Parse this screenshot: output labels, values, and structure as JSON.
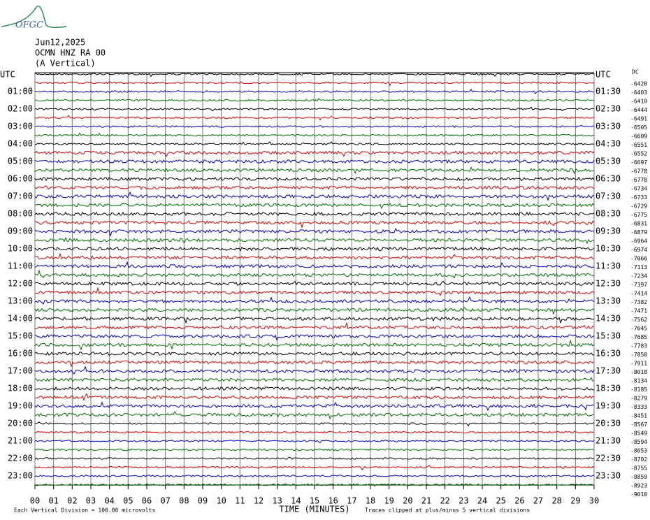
{
  "logo": "OFGC",
  "chart_data": {
    "type": "helicorder",
    "title_lines": [
      "Jun12,2025",
      "OCMN HNZ RA 00",
      "(A Vertical)"
    ],
    "left_labels": [
      "UTC",
      "01:00",
      "02:00",
      "03:00",
      "04:00",
      "05:00",
      "06:00",
      "07:00",
      "08:00",
      "09:00",
      "10:00",
      "11:00",
      "12:00",
      "13:00",
      "14:00",
      "15:00",
      "16:00",
      "17:00",
      "18:00",
      "19:00",
      "20:00",
      "21:00",
      "22:00",
      "23:00"
    ],
    "right_labels": [
      "UTC",
      "01:30",
      "02:30",
      "03:30",
      "04:30",
      "05:30",
      "06:30",
      "07:30",
      "08:30",
      "09:30",
      "10:30",
      "11:30",
      "12:30",
      "13:30",
      "14:30",
      "15:30",
      "16:30",
      "17:30",
      "18:30",
      "19:30",
      "20:30",
      "21:30",
      "22:30",
      "23:30"
    ],
    "dc_label": "DC",
    "dc_offsets": [
      -6420,
      -6403,
      -6419,
      -6444,
      -6491,
      -6505,
      -6609,
      -6551,
      -6552,
      -6697,
      -6778,
      -6778,
      -6734,
      -6733,
      -6729,
      -6775,
      -6831,
      -6879,
      -6964,
      -6974,
      -7066,
      -7113,
      -7234,
      -7397,
      -7414,
      -7382,
      -7471,
      -7562,
      -7645,
      -7685,
      -7783,
      -7850,
      -7911,
      -8018,
      -8134,
      -8185,
      -8279,
      -8333,
      -8451,
      -8567,
      -8549,
      -8594,
      -8653,
      -8702,
      -8755,
      -8859,
      -8923,
      -9010
    ],
    "trace_colors": [
      "#000000",
      "#e00000",
      "#0000d0",
      "#007000"
    ],
    "xlabel": "TIME (MINUTES)",
    "xlim": [
      0,
      30
    ],
    "xticks": [
      {
        "value": 0,
        "label": "00"
      },
      {
        "value": 1,
        "label": "01"
      },
      {
        "value": 2,
        "label": "02"
      },
      {
        "value": 3,
        "label": "03"
      },
      {
        "value": 4,
        "label": "04"
      },
      {
        "value": 5,
        "label": "05"
      },
      {
        "value": 6,
        "label": "06"
      },
      {
        "value": 7,
        "label": "07"
      },
      {
        "value": 8,
        "label": "08"
      },
      {
        "value": 9,
        "label": "09"
      },
      10,
      11,
      12,
      13,
      14,
      15,
      16,
      17,
      18,
      19,
      20,
      21,
      22,
      23,
      24,
      25,
      26,
      27,
      28,
      29,
      30
    ],
    "grid": true,
    "footer_left": "Each Vertical Division =  100.00 microvolts",
    "footer_right": "Traces clipped at plus/minus 5 vertical divisions"
  }
}
